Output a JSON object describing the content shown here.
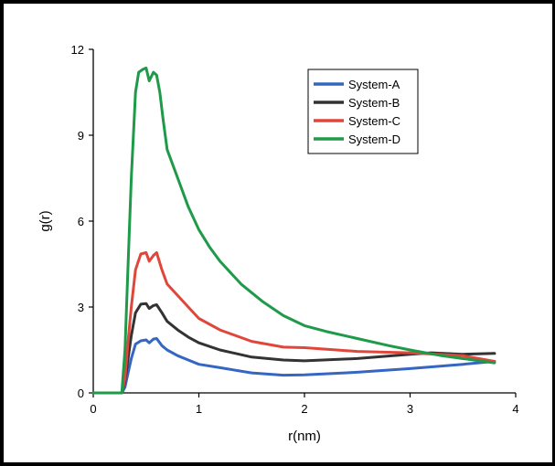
{
  "chart_data": {
    "type": "line",
    "title": "",
    "xlabel": "r(nm)",
    "ylabel": "g(r)",
    "xlim": [
      0,
      4
    ],
    "ylim": [
      0,
      12
    ],
    "xticks": [
      "0",
      "1",
      "2",
      "3",
      "4"
    ],
    "yticks": [
      "0",
      "3",
      "6",
      "9",
      "12"
    ],
    "grid": false,
    "legend_position": "top-right",
    "series": [
      {
        "name": "System-A",
        "color": "#3466c2",
        "points": [
          [
            0,
            0
          ],
          [
            0.27,
            0
          ],
          [
            0.3,
            0.2
          ],
          [
            0.33,
            0.7
          ],
          [
            0.36,
            1.2
          ],
          [
            0.4,
            1.7
          ],
          [
            0.45,
            1.82
          ],
          [
            0.5,
            1.85
          ],
          [
            0.53,
            1.75
          ],
          [
            0.57,
            1.88
          ],
          [
            0.6,
            1.9
          ],
          [
            0.65,
            1.65
          ],
          [
            0.7,
            1.5
          ],
          [
            0.8,
            1.3
          ],
          [
            0.9,
            1.15
          ],
          [
            1.0,
            1.0
          ],
          [
            1.2,
            0.88
          ],
          [
            1.5,
            0.7
          ],
          [
            1.8,
            0.62
          ],
          [
            2.0,
            0.63
          ],
          [
            2.5,
            0.72
          ],
          [
            3.0,
            0.85
          ],
          [
            3.5,
            1.0
          ],
          [
            3.8,
            1.1
          ]
        ]
      },
      {
        "name": "System-B",
        "color": "#333333",
        "points": [
          [
            0,
            0
          ],
          [
            0.27,
            0
          ],
          [
            0.3,
            0.4
          ],
          [
            0.33,
            1.2
          ],
          [
            0.36,
            2.0
          ],
          [
            0.4,
            2.8
          ],
          [
            0.45,
            3.1
          ],
          [
            0.5,
            3.12
          ],
          [
            0.53,
            2.95
          ],
          [
            0.57,
            3.05
          ],
          [
            0.6,
            3.08
          ],
          [
            0.65,
            2.8
          ],
          [
            0.7,
            2.5
          ],
          [
            0.8,
            2.2
          ],
          [
            0.9,
            1.95
          ],
          [
            1.0,
            1.75
          ],
          [
            1.2,
            1.5
          ],
          [
            1.5,
            1.25
          ],
          [
            1.8,
            1.15
          ],
          [
            2.0,
            1.12
          ],
          [
            2.5,
            1.2
          ],
          [
            3.0,
            1.35
          ],
          [
            3.2,
            1.4
          ],
          [
            3.5,
            1.35
          ],
          [
            3.8,
            1.38
          ]
        ]
      },
      {
        "name": "System-C",
        "color": "#e0473b",
        "points": [
          [
            0,
            0
          ],
          [
            0.27,
            0
          ],
          [
            0.3,
            0.5
          ],
          [
            0.33,
            1.8
          ],
          [
            0.36,
            3.0
          ],
          [
            0.4,
            4.3
          ],
          [
            0.45,
            4.85
          ],
          [
            0.5,
            4.9
          ],
          [
            0.53,
            4.6
          ],
          [
            0.57,
            4.8
          ],
          [
            0.6,
            4.9
          ],
          [
            0.65,
            4.3
          ],
          [
            0.7,
            3.8
          ],
          [
            0.8,
            3.4
          ],
          [
            0.9,
            3.0
          ],
          [
            1.0,
            2.6
          ],
          [
            1.2,
            2.2
          ],
          [
            1.5,
            1.8
          ],
          [
            1.8,
            1.6
          ],
          [
            2.0,
            1.58
          ],
          [
            2.5,
            1.45
          ],
          [
            3.0,
            1.4
          ],
          [
            3.5,
            1.3
          ],
          [
            3.8,
            1.1
          ]
        ]
      },
      {
        "name": "System-D",
        "color": "#1e9a49",
        "points": [
          [
            0,
            0
          ],
          [
            0.27,
            0
          ],
          [
            0.3,
            1.5
          ],
          [
            0.33,
            4.5
          ],
          [
            0.36,
            7.5
          ],
          [
            0.4,
            10.5
          ],
          [
            0.43,
            11.2
          ],
          [
            0.47,
            11.3
          ],
          [
            0.5,
            11.35
          ],
          [
            0.53,
            10.9
          ],
          [
            0.57,
            11.2
          ],
          [
            0.6,
            11.1
          ],
          [
            0.63,
            10.5
          ],
          [
            0.66,
            9.6
          ],
          [
            0.7,
            8.5
          ],
          [
            0.8,
            7.5
          ],
          [
            0.9,
            6.5
          ],
          [
            1.0,
            5.7
          ],
          [
            1.1,
            5.1
          ],
          [
            1.2,
            4.6
          ],
          [
            1.4,
            3.8
          ],
          [
            1.6,
            3.2
          ],
          [
            1.8,
            2.7
          ],
          [
            2.0,
            2.35
          ],
          [
            2.2,
            2.15
          ],
          [
            2.5,
            1.9
          ],
          [
            2.8,
            1.65
          ],
          [
            3.0,
            1.5
          ],
          [
            3.3,
            1.3
          ],
          [
            3.6,
            1.15
          ],
          [
            3.8,
            1.05
          ]
        ]
      }
    ]
  }
}
